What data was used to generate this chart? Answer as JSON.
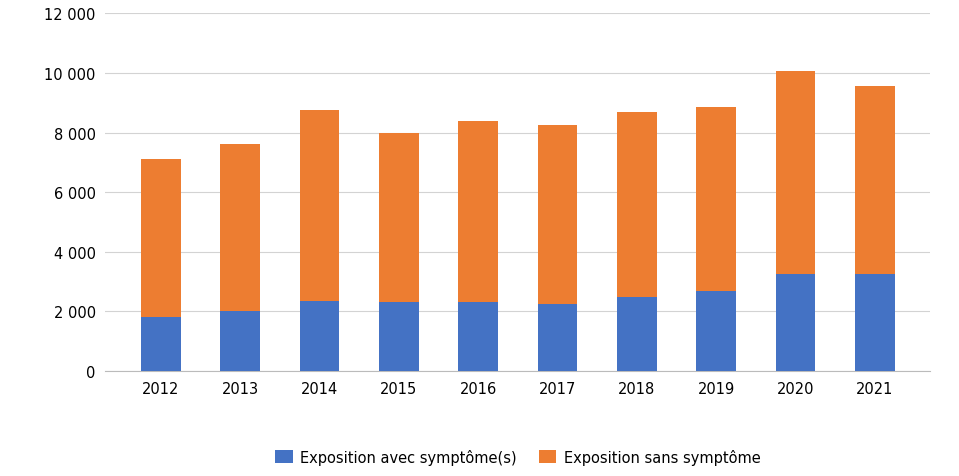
{
  "years": [
    2012,
    2013,
    2014,
    2015,
    2016,
    2017,
    2018,
    2019,
    2020,
    2021
  ],
  "avec_symptomes": [
    1800,
    2000,
    2350,
    2300,
    2300,
    2250,
    2500,
    2700,
    3250,
    3250
  ],
  "sans_symptome": [
    5300,
    5600,
    6400,
    5700,
    6100,
    6000,
    6200,
    6150,
    6800,
    6300
  ],
  "color_avec": "#4472C4",
  "color_sans": "#ED7D31",
  "label_avec": "Exposition avec symptôme(s)",
  "label_sans": "Exposition sans symptôme",
  "ylim": [
    0,
    12000
  ],
  "yticks": [
    0,
    2000,
    4000,
    6000,
    8000,
    10000,
    12000
  ],
  "ytick_labels": [
    "0",
    "2 000",
    "4 000",
    "6 000",
    "8 000",
    "10 000",
    "12 000"
  ],
  "background_color": "#ffffff",
  "grid_color": "#d3d3d3",
  "bar_width": 0.5,
  "legend_fontsize": 10.5,
  "tick_fontsize": 10.5
}
